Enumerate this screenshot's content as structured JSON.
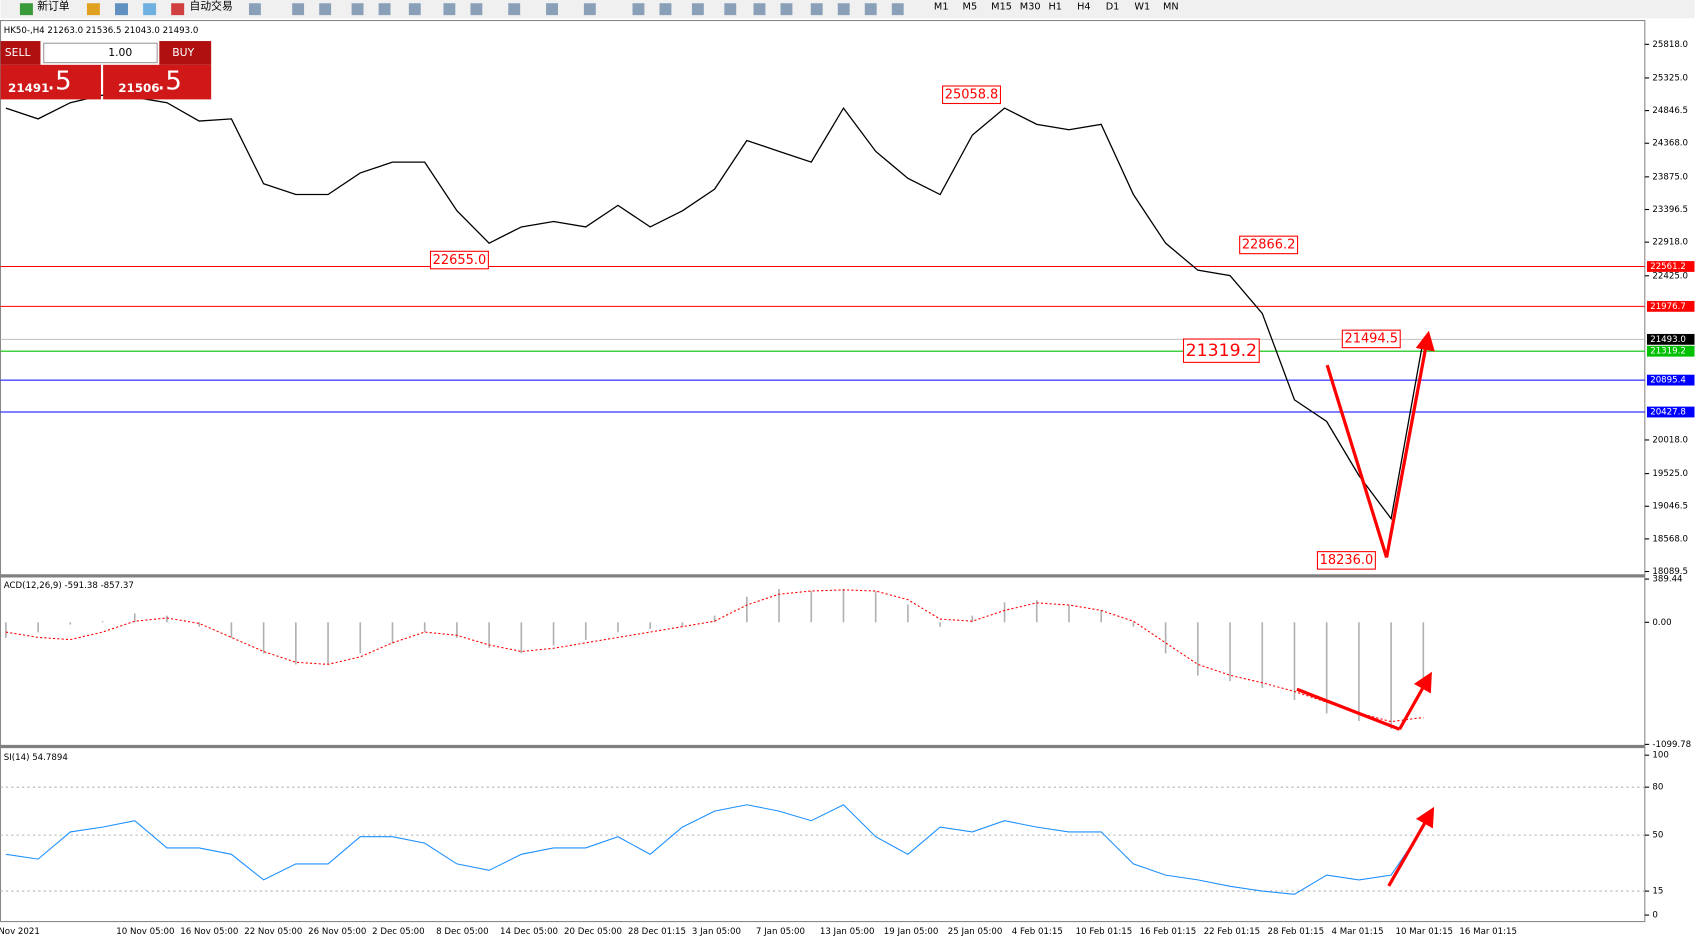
{
  "toolbar": {
    "new_order": "新订单",
    "auto_trading": "自动交易",
    "timeframes": [
      "M1",
      "M5",
      "M15",
      "M30",
      "H1",
      "H4",
      "D1",
      "W1",
      "MN"
    ]
  },
  "trade_panel": {
    "sell": "SELL",
    "buy": "BUY",
    "lots": "1.00",
    "bid_main": "21491",
    "bid_pips": ".5",
    "ask_main": "21506",
    "ask_pips": ".5"
  },
  "time_axis": [
    "Nov 2021",
    "10 Nov 05:00",
    "16 Nov 05:00",
    "22 Nov 05:00",
    "26 Nov 05:00",
    "2 Dec 05:00",
    "8 Dec 05:00",
    "14 Dec 05:00",
    "20 Dec 05:00",
    "28 Dec 01:15",
    "3 Jan 05:00",
    "7 Jan 05:00",
    "13 Jan 05:00",
    "19 Jan 05:00",
    "25 Jan 05:00",
    "4 Feb 01:15",
    "10 Feb 01:15",
    "16 Feb 01:15",
    "22 Feb 01:15",
    "28 Feb 01:15",
    "4 Mar 01:15",
    "10 Mar 01:15",
    "16 Mar 01:15"
  ],
  "chart_data": [
    {
      "type": "line",
      "title": "HK50-,H4  21263.0 21536.5 21043.0 21493.0",
      "color": "#000000",
      "values": [
        24883,
        24725,
        24962,
        25073,
        25041,
        24962,
        24693,
        24725,
        23774,
        23616,
        23616,
        23933,
        24091,
        24091,
        23378,
        22903,
        23141,
        23220,
        23141,
        23457,
        23141,
        23378,
        23695,
        24408,
        24249,
        24091,
        24883,
        24249,
        23853,
        23616,
        24487,
        24883,
        24645,
        24566,
        24645,
        23616,
        22903,
        22507,
        22428,
        21873,
        20606,
        20289,
        19497,
        18864,
        21493
      ],
      "ylim": [
        18058,
        26151
      ],
      "yticks": [
        {
          "value": 25818,
          "label": "25818.0"
        },
        {
          "value": 25325,
          "label": "25325.0"
        },
        24846.5,
        {
          "value": 24368,
          "label": "24368.0"
        },
        {
          "value": 23875,
          "label": "23875.0"
        },
        23396.5,
        {
          "value": 22918,
          "label": "22918.0"
        },
        {
          "value": 22425,
          "label": "22425.0"
        },
        {
          "value": 20018,
          "label": "20018.0"
        },
        {
          "value": 19525,
          "label": "19525.0"
        },
        19046.5,
        {
          "value": 18568,
          "label": "18568.0"
        },
        18089.5
      ],
      "levels": [
        {
          "value": 22561.2,
          "label": "22561.2",
          "color": "#ff0000",
          "box_color": "#ff0000"
        },
        {
          "value": 21976.7,
          "label": "21976.7",
          "color": "#ff0000",
          "box_color": "#ff0000"
        },
        {
          "value": 21493,
          "label": "21493.0",
          "color": "#c0c0c0",
          "box_color": "#000000"
        },
        {
          "value": 21319.2,
          "label": "21319.2",
          "color": "#00c000",
          "box_color": "#00c000"
        },
        {
          "value": 20895.4,
          "label": "20895.4",
          "color": "#0000ff",
          "box_color": "#0000ff"
        },
        {
          "value": 20427.8,
          "label": "20427.8",
          "color": "#0000ff",
          "box_color": "#0000ff"
        }
      ],
      "annotations": [
        "25058.8",
        "22655.0",
        "22866.2",
        "21319.2",
        "21494.5",
        "18236.0"
      ]
    },
    {
      "type": "macd",
      "title": "ACD(12,26,9) -591.38 -857.37",
      "series": [
        {
          "style": "histogram",
          "color": "#b0b0b0",
          "values": [
            -140,
            -90,
            -20,
            10,
            80,
            60,
            -40,
            -140,
            -280,
            -380,
            -380,
            -280,
            -190,
            -90,
            -140,
            -230,
            -280,
            -210,
            -160,
            -90,
            -60,
            -40,
            60,
            230,
            300,
            280,
            300,
            280,
            160,
            -40,
            60,
            180,
            200,
            160,
            110,
            -40,
            -280,
            -480,
            -530,
            -590,
            -700,
            -820,
            -890,
            -960,
            -591.38
          ]
        },
        {
          "style": "dashed",
          "color": "#ff0000",
          "values": [
            -88,
            -136,
            -156,
            -88,
            10,
            39,
            -10,
            -136,
            -263,
            -360,
            -379,
            -311,
            -185,
            -88,
            -117,
            -204,
            -263,
            -234,
            -185,
            -136,
            -88,
            -39,
            10,
            156,
            253,
            282,
            292,
            282,
            204,
            29,
            10,
            107,
            175,
            156,
            107,
            10,
            -185,
            -379,
            -477,
            -545,
            -623,
            -720,
            -817,
            -895,
            -857.37
          ]
        }
      ],
      "ylim": [
        -1099.78,
        389.44
      ],
      "yticks": [
        389.44,
        {
          "value": 0,
          "label": "0.00"
        },
        -1099.78
      ]
    },
    {
      "type": "line",
      "title": "SI(14) 54.7894",
      "color": "#1e90ff",
      "values": [
        38,
        35,
        52,
        55,
        59,
        42,
        42,
        38,
        22,
        32,
        32,
        49,
        49,
        45,
        32,
        28,
        38,
        42,
        42,
        49,
        38,
        55,
        65,
        69,
        65,
        59,
        69,
        49,
        38,
        55,
        52,
        59,
        55,
        52,
        52,
        32,
        25,
        22,
        18,
        15,
        13,
        25,
        22,
        25,
        54.7894
      ],
      "ylim": [
        0,
        100
      ],
      "yticks": [
        0,
        15,
        50,
        80,
        100
      ],
      "levels": [
        15,
        50,
        80
      ]
    }
  ]
}
